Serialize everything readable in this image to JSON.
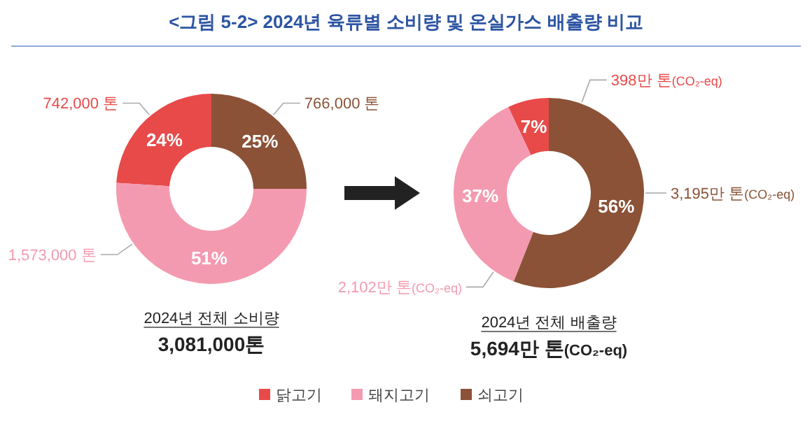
{
  "chart_data": [
    {
      "type": "donut",
      "title": "<그림 5-2> 2024년 육류별 소비량 및 온실가스 배출량 비교",
      "categories": [
        "닭고기",
        "돼지고기",
        "쇠고기"
      ],
      "values": [
        24,
        51,
        25
      ],
      "colors": [
        "#e84a4a",
        "#f49ab0",
        "#8b5237"
      ],
      "value_labels": [
        "24%",
        "51%",
        "25%"
      ],
      "legend": "bottom",
      "annotations": [
        "742,000 톤",
        "1,573,000 톤",
        "766,000 톤",
        "2024년 전체 소비량",
        "3,081,000톤"
      ]
    },
    {
      "type": "donut",
      "categories": [
        null,
        null,
        null
      ],
      "values": [
        7,
        37,
        56
      ],
      "colors": [
        "#e84a4a",
        "#f49ab0",
        "#8b5237"
      ],
      "value_labels": [
        "7%",
        "37%",
        "56%"
      ],
      "annotations": [
        "398만 톤(CO₂-eq)",
        "2,102만 톤(CO₂-eq)",
        "3,195만 톤(CO₂-eq)",
        "2024년 전체 배출량",
        "5,694만 톤(CO₂-eq)"
      ]
    }
  ]
}
